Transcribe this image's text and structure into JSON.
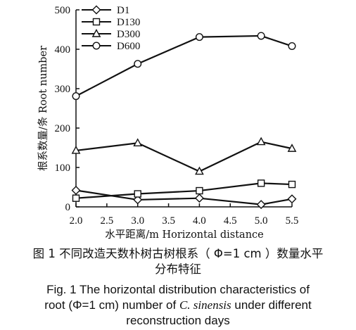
{
  "chart_data": {
    "type": "line",
    "x": [
      2.0,
      3.0,
      4.0,
      5.0,
      5.5
    ],
    "x_tick_labels": [
      "2.0",
      "2.5",
      "3.0",
      "3.5",
      "4.0",
      "4.5",
      "5.0",
      "5.5"
    ],
    "x_ticks": [
      2.0,
      2.5,
      3.0,
      3.5,
      4.0,
      4.5,
      5.0,
      5.5
    ],
    "y_ticks": [
      0,
      100,
      200,
      300,
      400,
      500
    ],
    "y_tick_labels": [
      "0",
      "100",
      "200",
      "300",
      "400",
      "500"
    ],
    "xlim": [
      2.0,
      5.5
    ],
    "ylim": [
      0,
      500
    ],
    "xlabel": "水平距离/m Horizontal distance",
    "ylabel": "根系数量/条 Root number",
    "legend_position": "top-left",
    "grid": false,
    "series": [
      {
        "name": "D1",
        "marker": "diamond",
        "values": [
          42,
          18,
          22,
          6,
          20
        ]
      },
      {
        "name": "D130",
        "marker": "square",
        "values": [
          22,
          33,
          41,
          60,
          57
        ]
      },
      {
        "name": "D300",
        "marker": "triangle",
        "values": [
          143,
          162,
          90,
          165,
          148
        ]
      },
      {
        "name": "D600",
        "marker": "circle",
        "values": [
          281,
          363,
          431,
          434,
          408
        ]
      }
    ]
  },
  "caption": {
    "cn_line1": "图 1  不同改造天数朴树古树根系（ Φ=1 cm ）数量水平",
    "cn_line2": "分布特征",
    "en_line1": "Fig. 1  The horizontal distribution characteristics of",
    "en_line2_pre": "root (Φ=1 cm) number of ",
    "en_line2_species": "C. sinensis",
    "en_line2_post": " under different",
    "en_line3": "reconstruction days"
  }
}
